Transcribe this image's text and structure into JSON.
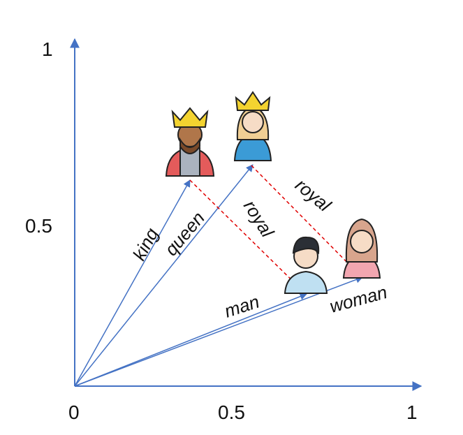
{
  "axes": {
    "origin": "0",
    "x_mid": "0.5",
    "x_end": "1",
    "y_mid": "0.5",
    "y_end": "1"
  },
  "vectors": {
    "king": "king",
    "queen": "queen",
    "man": "man",
    "woman": "woman"
  },
  "offsets": [
    "royal",
    "royal"
  ]
}
